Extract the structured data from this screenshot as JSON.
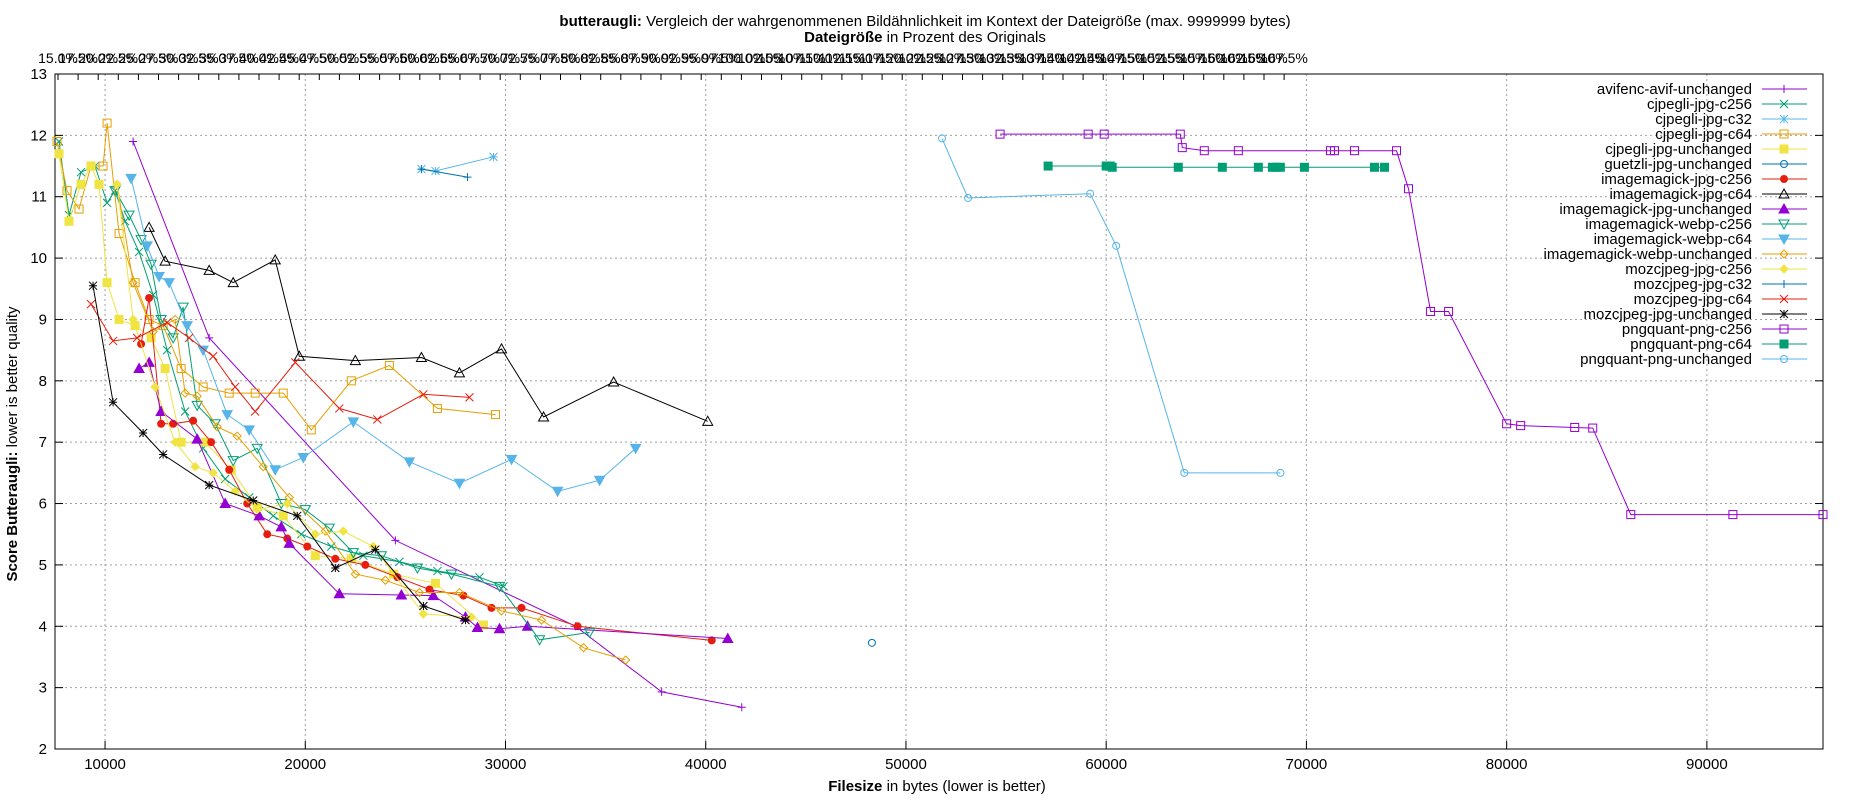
{
  "page": {
    "title_bold": "butteraugli:",
    "title_rest": " Vergleich der wahrgenommenen Bildähnlichkeit im Kontext der Dateigröße (max. 9999999 bytes)",
    "subtitle_bold": "Dateigröße",
    "subtitle_rest": " in Prozent des Originals"
  },
  "chart_data": {
    "type": "line",
    "xlabel_bold": "Filesize",
    "xlabel_rest": " in bytes (lower is better)",
    "ylabel_bold": "Score Butteraugli:",
    "ylabel_rest": " lower is better quality",
    "xlim": [
      7500,
      95800
    ],
    "ylim": [
      2,
      13
    ],
    "x_ticks": [
      10000,
      20000,
      30000,
      40000,
      50000,
      60000,
      70000,
      80000,
      90000
    ],
    "y_ticks": [
      2,
      3,
      4,
      5,
      6,
      7,
      8,
      9,
      10,
      11,
      12,
      13
    ],
    "top_axis_labels": [
      "15.0%",
      "17.5%",
      "20.0%",
      "22.5%",
      "25.0%",
      "27.5%",
      "30.0%",
      "32.5%",
      "35.0%",
      "37.5%",
      "40.0%",
      "42.5%",
      "45.0%",
      "47.5%",
      "50.0%",
      "52.5%",
      "55.0%",
      "57.5%",
      "60.0%",
      "62.5%",
      "65.0%",
      "67.5%",
      "70.0%",
      "72.5%",
      "75.0%",
      "77.5%",
      "80.0%",
      "82.5%",
      "85.0%",
      "87.5%",
      "90.0%",
      "92.5%",
      "95.0%",
      "97.5%",
      "100.0%",
      "102.5%",
      "105.0%",
      "107.5%",
      "110.0%",
      "112.5%",
      "115.0%",
      "117.5%",
      "120.0%",
      "122.5%",
      "125.0%",
      "127.5%",
      "130.0%",
      "132.5%",
      "135.0%",
      "137.5%",
      "140.0%",
      "142.5%",
      "145.0%",
      "147.5%",
      "150.0%",
      "152.5%",
      "155.0%",
      "157.5%",
      "160.0%",
      "162.5%",
      "165.0%",
      "167.5%"
    ],
    "grid": true,
    "legend_position": "top-right",
    "series": [
      {
        "name": "avifenc-avif-unchanged",
        "color": "#9400d3",
        "marker": "plus",
        "x": [
          11400,
          15200,
          24500,
          33500,
          37800,
          41800
        ],
        "y": [
          11.9,
          8.7,
          5.4,
          4.0,
          2.93,
          2.68
        ]
      },
      {
        "name": "cjpegli-jpg-c256",
        "color": "#009e73",
        "marker": "cross",
        "x": [
          7700,
          8200,
          8800,
          9500,
          10100,
          10500,
          11000,
          11700,
          12400,
          13100,
          14000,
          14900,
          16000,
          17200,
          18400,
          19800,
          21300,
          22900,
          24700,
          26600,
          28700,
          29900
        ],
        "y": [
          11.9,
          10.7,
          11.4,
          11.5,
          10.9,
          11.1,
          10.6,
          10.1,
          9.4,
          8.5,
          7.5,
          6.9,
          6.4,
          6.1,
          5.8,
          5.5,
          5.3,
          5.15,
          5.05,
          4.9,
          4.8,
          4.65
        ]
      },
      {
        "name": "cjpegli-jpg-c32",
        "color": "#56b4e9",
        "marker": "star",
        "x": [
          25800,
          26500,
          29400
        ],
        "y": [
          11.45,
          11.42,
          11.65
        ]
      },
      {
        "name": "cjpegli-jpg-c64",
        "color": "#e69f00",
        "marker": "square",
        "x": [
          7600,
          8100,
          8700,
          9300,
          9900,
          10100,
          10700,
          11500,
          12200,
          12900,
          13800,
          14900,
          16200,
          17500,
          18900,
          20300,
          22300,
          24200,
          26600,
          29500
        ],
        "y": [
          11.9,
          11.1,
          10.8,
          11.5,
          11.5,
          12.2,
          10.4,
          9.6,
          9.0,
          8.9,
          8.2,
          7.9,
          7.8,
          7.8,
          7.8,
          7.2,
          8.0,
          8.25,
          7.55,
          7.45
        ]
      },
      {
        "name": "cjpegli-jpg-unchanged",
        "color": "#f0e442",
        "marker": "filled-square",
        "x": [
          7700,
          8200,
          8800,
          9300,
          9700,
          10100,
          10700,
          11500,
          12300,
          13000,
          13800,
          15000,
          16300,
          17600,
          18900,
          20500,
          22300,
          24400,
          26500,
          28900
        ],
        "y": [
          11.7,
          10.6,
          11.2,
          11.5,
          11.2,
          9.6,
          9.0,
          8.9,
          8.7,
          8.2,
          7.0,
          7.0,
          6.55,
          5.95,
          5.8,
          5.15,
          5.1,
          4.85,
          4.7,
          4.02
        ]
      },
      {
        "name": "guetzli-jpg-unchanged",
        "color": "#0072b2",
        "marker": "circle",
        "x": [
          48300
        ],
        "y": [
          3.73
        ]
      },
      {
        "name": "imagemagick-jpg-c256",
        "color": "#e51e10",
        "marker": "filled-circle",
        "x": [
          11800,
          12200,
          12800,
          13400,
          14400,
          15300,
          16200,
          17100,
          18100,
          19100,
          20100,
          21500,
          23000,
          24600,
          26200,
          27900,
          29300,
          30800,
          33600,
          40300
        ],
        "y": [
          8.6,
          9.35,
          7.3,
          7.3,
          7.35,
          7.0,
          6.55,
          6.0,
          5.5,
          5.43,
          5.3,
          5.1,
          5.0,
          4.8,
          4.6,
          4.5,
          4.3,
          4.3,
          4.0,
          3.77
        ]
      },
      {
        "name": "imagemagick-jpg-c64",
        "color": "#000000",
        "marker": "triangle",
        "x": [
          12200,
          13000,
          15200,
          16400,
          18500,
          19700,
          22500,
          25800,
          27700,
          29800,
          31900,
          35400,
          40100
        ],
        "y": [
          10.5,
          9.95,
          9.8,
          9.6,
          9.97,
          8.4,
          8.33,
          8.38,
          8.13,
          8.52,
          7.41,
          7.98,
          7.34
        ]
      },
      {
        "name": "imagemagick-jpg-unchanged",
        "color": "#9400d3",
        "marker": "filled-triangle",
        "x": [
          11700,
          12200,
          12800,
          14600,
          16000,
          17700,
          18800,
          19200,
          21700,
          24800,
          26400,
          28000,
          28600,
          29700,
          31100,
          41100
        ],
        "y": [
          8.2,
          8.3,
          7.5,
          7.05,
          6.0,
          5.8,
          5.62,
          5.35,
          4.53,
          4.51,
          4.5,
          4.15,
          3.98,
          3.96,
          4.0,
          3.8
        ]
      },
      {
        "name": "imagemagick-webp-c256",
        "color": "#009e73",
        "marker": "inv-triangle",
        "x": [
          10500,
          11200,
          11800,
          12300,
          12800,
          13400,
          13900,
          14600,
          15500,
          16400,
          17600,
          18800,
          20000,
          21200,
          22400,
          23800,
          25600,
          27300,
          29700,
          31700,
          34200
        ],
        "y": [
          11.1,
          10.7,
          10.3,
          9.9,
          9.0,
          8.7,
          9.2,
          7.6,
          7.3,
          6.7,
          6.9,
          6.0,
          5.9,
          5.6,
          5.2,
          5.15,
          4.95,
          4.85,
          4.65,
          3.78,
          3.9
        ]
      },
      {
        "name": "imagemagick-webp-c64",
        "color": "#56b4e9",
        "marker": "filled-inv-triangle",
        "x": [
          11300,
          12100,
          12700,
          13200,
          14100,
          14900,
          16100,
          17200,
          18500,
          19900,
          22400,
          25200,
          27700,
          30300,
          32600,
          34700,
          36500
        ],
        "y": [
          11.3,
          10.2,
          9.7,
          9.6,
          8.9,
          8.5,
          7.45,
          7.2,
          6.55,
          6.75,
          7.33,
          6.68,
          6.33,
          6.72,
          6.2,
          6.38,
          6.9
        ]
      },
      {
        "name": "imagemagick-webp-unchanged",
        "color": "#e69f00",
        "marker": "diamond",
        "x": [
          10600,
          11400,
          12400,
          13500,
          14000,
          14600,
          15600,
          16600,
          17900,
          19200,
          21000,
          22500,
          24000,
          25700,
          27700,
          29800,
          31800,
          33900,
          36000
        ],
        "y": [
          11.2,
          9.6,
          8.8,
          9.0,
          7.8,
          7.75,
          7.25,
          7.1,
          6.6,
          6.1,
          5.55,
          4.85,
          4.75,
          4.55,
          4.55,
          4.25,
          4.1,
          3.65,
          3.45
        ]
      },
      {
        "name": "mozcjpeg-jpg-c256",
        "color": "#f0e442",
        "marker": "filled-diamond",
        "x": [
          10600,
          11400,
          12500,
          13500,
          14500,
          15400,
          16500,
          17600,
          19100,
          20500,
          21900,
          23400,
          25900,
          28300
        ],
        "y": [
          11.2,
          9.0,
          7.9,
          7.0,
          6.6,
          6.5,
          6.2,
          5.9,
          6.0,
          5.5,
          5.55,
          5.3,
          4.2,
          4.15
        ]
      },
      {
        "name": "mozcjpeg-jpg-c32",
        "color": "#0072b2",
        "marker": "plus",
        "x": [
          25800,
          28100
        ],
        "y": [
          11.45,
          11.32
        ]
      },
      {
        "name": "mozcjpeg-jpg-c64",
        "color": "#e51e10",
        "marker": "cross",
        "x": [
          9300,
          10400,
          11600,
          13100,
          14200,
          15400,
          16500,
          17500,
          19500,
          21700,
          23600,
          25900,
          28200
        ],
        "y": [
          9.25,
          8.65,
          8.7,
          8.95,
          8.7,
          8.4,
          7.9,
          7.5,
          8.3,
          7.55,
          7.37,
          7.78,
          7.73
        ]
      },
      {
        "name": "mozcjpeg-jpg-unchanged",
        "color": "#000000",
        "marker": "star",
        "x": [
          9400,
          10400,
          11900,
          12900,
          15200,
          17400,
          19600,
          21500,
          23500,
          25900,
          28000
        ],
        "y": [
          9.55,
          7.65,
          7.15,
          6.8,
          6.3,
          6.05,
          5.8,
          4.95,
          5.25,
          4.33,
          4.1
        ]
      },
      {
        "name": "pngquant-png-c256",
        "color": "#9400d3",
        "marker": "square",
        "x": [
          54700,
          59100,
          59900,
          63700,
          63800,
          64900,
          66600,
          71200,
          71400,
          72400,
          74500,
          75100,
          76200,
          77100,
          80000,
          80700,
          83400,
          84300,
          86200,
          91300,
          95800
        ],
        "y": [
          12.02,
          12.02,
          12.02,
          12.02,
          11.8,
          11.75,
          11.75,
          11.75,
          11.75,
          11.75,
          11.75,
          11.13,
          9.13,
          9.13,
          7.3,
          7.27,
          7.24,
          7.23,
          5.82,
          5.82,
          5.82
        ]
      },
      {
        "name": "pngquant-png-c64",
        "color": "#009e73",
        "marker": "filled-square",
        "x": [
          57100,
          60000,
          60200,
          60300,
          63600,
          65800,
          67600,
          68300,
          68500,
          68700,
          69900,
          73400,
          73900
        ],
        "y": [
          11.5,
          11.5,
          11.5,
          11.48,
          11.48,
          11.48,
          11.48,
          11.48,
          11.48,
          11.48,
          11.48,
          11.48,
          11.48
        ]
      },
      {
        "name": "pngquant-png-unchanged",
        "color": "#56b4e9",
        "marker": "circle",
        "x": [
          51800,
          53100,
          59200,
          60500,
          63900,
          68700
        ],
        "y": [
          11.95,
          10.98,
          11.05,
          10.2,
          6.5,
          6.5
        ]
      }
    ]
  }
}
